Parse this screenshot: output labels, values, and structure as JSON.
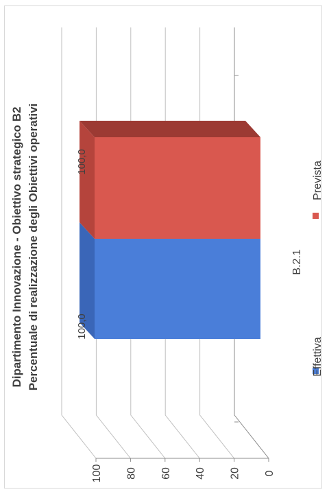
{
  "chart_data": {
    "type": "bar",
    "title": "Dipartimento Innovazione - Obiettivo strategico B2",
    "subtitle": "Percentuale di realizzazione degli Obiettivi operativi",
    "categories": [
      "B.2.1"
    ],
    "series": [
      {
        "name": "Effettiva",
        "values": [
          100.0
        ],
        "color": "#4a7ed9",
        "label": "100,0"
      },
      {
        "name": "Prevista",
        "values": [
          100.0
        ],
        "color": "#d9584f",
        "label": "100,0"
      }
    ],
    "ylim": [
      0,
      100
    ],
    "yticks": [
      "0",
      "20",
      "40",
      "60",
      "80",
      "100"
    ],
    "grid": true,
    "legend_position": "bottom",
    "style": "3d-clustered-column-rotated"
  }
}
